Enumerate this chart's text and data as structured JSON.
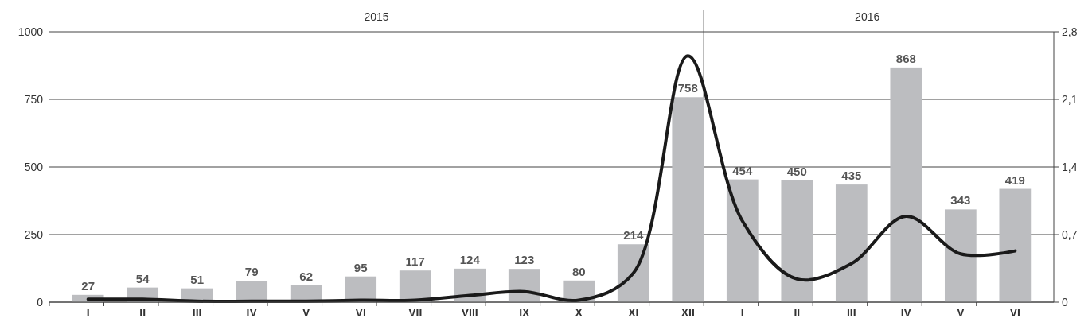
{
  "chart_data": {
    "type": "bar",
    "categories": [
      "I",
      "II",
      "III",
      "IV",
      "V",
      "VI",
      "VII",
      "VIII",
      "IX",
      "X",
      "XI",
      "XII",
      "I",
      "II",
      "III",
      "IV",
      "V",
      "VI"
    ],
    "annotations": [
      "2015",
      "2016"
    ],
    "series": [
      {
        "color": "#bcbdc0",
        "values": [
          27,
          54,
          51,
          79,
          62,
          95,
          117,
          124,
          123,
          80,
          214,
          758,
          454,
          450,
          435,
          868,
          343,
          419
        ],
        "value_labels": [
          "27",
          "54",
          "51",
          "79",
          "62",
          "95",
          "117",
          "124",
          "123",
          "80",
          "214",
          "758",
          "454",
          "450",
          "435",
          "868",
          "343",
          "419"
        ]
      },
      {
        "type": "line",
        "axis": "y2",
        "color": "#1a1a1a",
        "values": [
          0.03,
          0.03,
          0.01,
          0.01,
          0.01,
          0.02,
          0.02,
          0.07,
          0.11,
          0.02,
          0.3,
          2.55,
          0.84,
          0.24,
          0.4,
          0.89,
          0.5,
          0.53
        ]
      }
    ],
    "grid": "y",
    "marker": "none",
    "ylim": [
      0,
      1000
    ],
    "yticks": [
      0,
      250,
      500,
      750,
      1000
    ],
    "y2lim": [
      0,
      2.8
    ],
    "y2ticks": [
      0,
      {
        "value": 0.7,
        "label": "0,7"
      },
      {
        "value": 1.4,
        "label": "1,4"
      },
      {
        "value": 2.1,
        "label": "2,1"
      },
      {
        "value": 2.8,
        "label": "2,8"
      }
    ]
  }
}
